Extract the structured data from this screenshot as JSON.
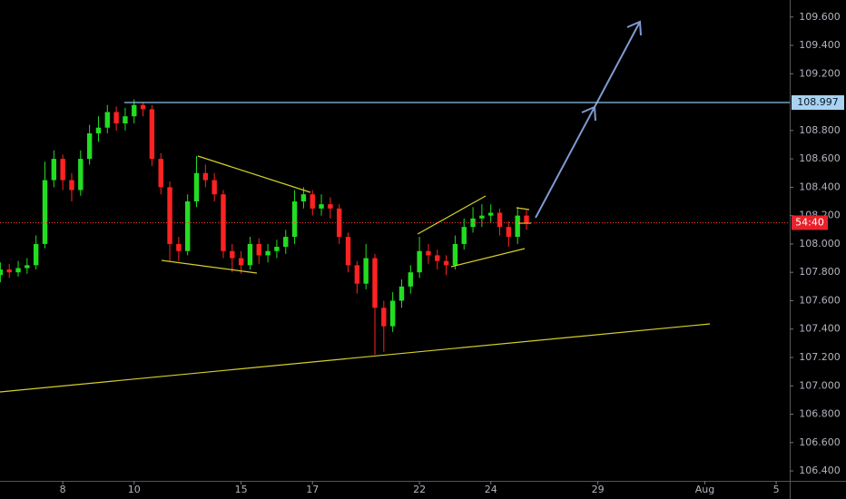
{
  "chart_data": {
    "type": "candlestick",
    "x": [
      -1.75,
      -1.5,
      -1.25,
      -1.0,
      -0.75,
      -0.5,
      -0.25,
      0.0,
      0.25,
      0.5,
      0.75,
      1.0,
      1.25,
      1.5,
      1.75,
      2.0,
      2.25,
      2.5,
      2.75,
      3.0,
      3.25,
      3.5,
      3.75,
      4.0,
      4.25,
      4.5,
      4.75,
      5.0,
      5.25,
      5.5,
      5.75,
      6.0,
      6.25,
      6.5,
      6.75,
      7.0,
      7.25,
      7.5,
      7.75,
      8.0,
      8.25,
      8.5,
      8.75,
      9.0,
      9.25,
      9.5,
      9.75,
      10.0,
      10.25,
      10.5,
      10.75,
      11.0,
      11.25,
      11.5,
      11.75,
      12.0,
      12.25,
      12.5,
      12.75,
      13.0
    ],
    "open": [
      107.78,
      107.82,
      107.8,
      107.83,
      107.85,
      108.0,
      108.45,
      108.6,
      108.45,
      108.38,
      108.6,
      108.78,
      108.82,
      108.93,
      108.85,
      108.9,
      108.98,
      108.95,
      108.6,
      108.4,
      108.0,
      107.95,
      108.3,
      108.5,
      108.45,
      108.35,
      107.95,
      107.9,
      107.85,
      108.0,
      107.92,
      107.95,
      107.98,
      108.05,
      108.3,
      108.35,
      108.25,
      108.28,
      108.25,
      108.05,
      107.85,
      107.72,
      107.9,
      107.55,
      107.42,
      107.6,
      107.7,
      107.8,
      107.95,
      107.92,
      107.88,
      107.85,
      108.0,
      108.12,
      108.18,
      108.2,
      108.22,
      108.12,
      108.05,
      108.2
    ],
    "high": [
      107.87,
      107.86,
      107.88,
      107.9,
      108.06,
      108.58,
      108.66,
      108.63,
      108.5,
      108.66,
      108.84,
      108.9,
      108.98,
      108.97,
      108.96,
      109.02,
      109.0,
      108.98,
      108.64,
      108.44,
      108.05,
      108.35,
      108.62,
      108.56,
      108.5,
      108.38,
      108.0,
      107.95,
      108.05,
      108.04,
      108.0,
      108.03,
      108.1,
      108.38,
      108.4,
      108.38,
      108.35,
      108.33,
      108.28,
      108.08,
      107.88,
      108.0,
      107.93,
      107.6,
      107.66,
      107.75,
      107.85,
      108.05,
      108.0,
      107.96,
      107.92,
      108.06,
      108.18,
      108.26,
      108.28,
      108.28,
      108.25,
      108.16,
      108.26,
      108.24
    ],
    "low": [
      107.73,
      107.76,
      107.77,
      107.79,
      107.82,
      107.97,
      108.4,
      108.38,
      108.3,
      108.34,
      108.56,
      108.72,
      108.78,
      108.8,
      108.8,
      108.85,
      108.9,
      108.55,
      108.35,
      107.88,
      107.88,
      107.92,
      108.26,
      108.4,
      108.3,
      107.9,
      107.8,
      107.79,
      107.82,
      107.86,
      107.87,
      107.9,
      107.93,
      108.0,
      108.25,
      108.2,
      108.2,
      108.18,
      108.0,
      107.8,
      107.65,
      107.68,
      107.22,
      107.24,
      107.38,
      107.55,
      107.65,
      107.76,
      107.86,
      107.82,
      107.78,
      107.82,
      107.96,
      108.08,
      108.12,
      108.15,
      108.06,
      107.98,
      108.0,
      108.1
    ],
    "close": [
      107.82,
      107.8,
      107.83,
      107.85,
      108.0,
      108.45,
      108.6,
      108.45,
      108.38,
      108.6,
      108.78,
      108.82,
      108.93,
      108.85,
      108.9,
      108.98,
      108.95,
      108.6,
      108.4,
      108.0,
      107.95,
      108.3,
      108.5,
      108.45,
      108.35,
      107.95,
      107.9,
      107.85,
      108.0,
      107.92,
      107.95,
      107.98,
      108.05,
      108.3,
      108.35,
      108.25,
      108.28,
      108.25,
      108.05,
      107.85,
      107.72,
      107.9,
      107.55,
      107.42,
      107.6,
      107.7,
      107.8,
      107.95,
      107.92,
      107.88,
      107.85,
      108.0,
      108.12,
      108.18,
      108.2,
      108.22,
      108.12,
      108.05,
      108.2,
      108.15
    ],
    "up_color": "#22dd22",
    "down_color": "#ff2222",
    "xlim": [
      -1.76,
      20.38
    ],
    "ylim": [
      106.33,
      109.72
    ],
    "xticks": [
      {
        "value": 0,
        "label": "8"
      },
      {
        "value": 2,
        "label": "10"
      },
      {
        "value": 5,
        "label": "15"
      },
      {
        "value": 7,
        "label": "17"
      },
      {
        "value": 10,
        "label": "22"
      },
      {
        "value": 12,
        "label": "24"
      },
      {
        "value": 15,
        "label": "29"
      },
      {
        "value": 18,
        "label": "Aug"
      },
      {
        "value": 20,
        "label": "5"
      }
    ],
    "yticks": [
      {
        "value": 106.4,
        "label": "106.400"
      },
      {
        "value": 106.6,
        "label": "106.600"
      },
      {
        "value": 106.8,
        "label": "106.800"
      },
      {
        "value": 107.0,
        "label": "107.000"
      },
      {
        "value": 107.2,
        "label": "107.200"
      },
      {
        "value": 107.4,
        "label": "107.400"
      },
      {
        "value": 107.6,
        "label": "107.600"
      },
      {
        "value": 107.8,
        "label": "107.800"
      },
      {
        "value": 108.0,
        "label": "108.000"
      },
      {
        "value": 108.2,
        "label": "108.200"
      },
      {
        "value": 108.4,
        "label": "108.400"
      },
      {
        "value": 108.6,
        "label": "108.600"
      },
      {
        "value": 108.8,
        "label": "108.800"
      },
      {
        "value": 109.2,
        "label": "109.200"
      },
      {
        "value": 109.4,
        "label": "109.400"
      },
      {
        "value": 109.6,
        "label": "109.600"
      }
    ],
    "resistance": 108.997,
    "price_line": 108.15,
    "countdown": "54:40"
  }
}
